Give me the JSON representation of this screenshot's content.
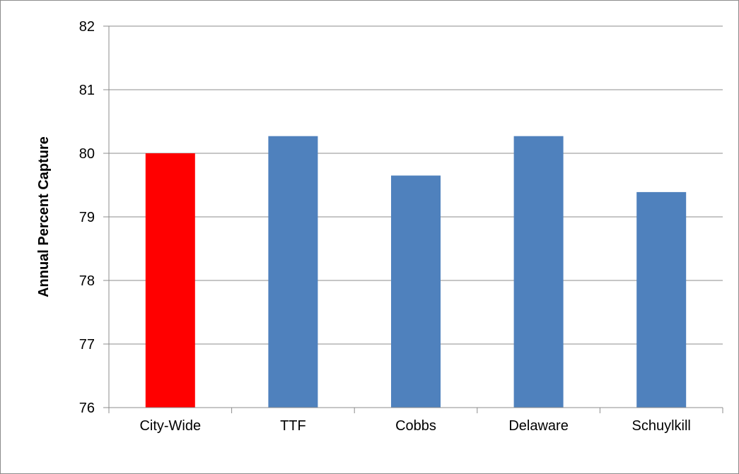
{
  "chart_data": {
    "type": "bar",
    "title": "",
    "xlabel": "",
    "ylabel": "Annual Percent Capture",
    "categories": [
      "City-Wide",
      "TTF",
      "Cobbs",
      "Delaware",
      "Schuylkill"
    ],
    "values": [
      80.0,
      80.27,
      79.65,
      80.27,
      79.39
    ],
    "bar_colors": [
      "#ff0000",
      "#4f81bd",
      "#4f81bd",
      "#4f81bd",
      "#4f81bd"
    ],
    "ylim": [
      76,
      82
    ],
    "yticks": [
      76,
      77,
      78,
      79,
      80,
      81,
      82
    ],
    "grid": true,
    "legend": "none"
  }
}
